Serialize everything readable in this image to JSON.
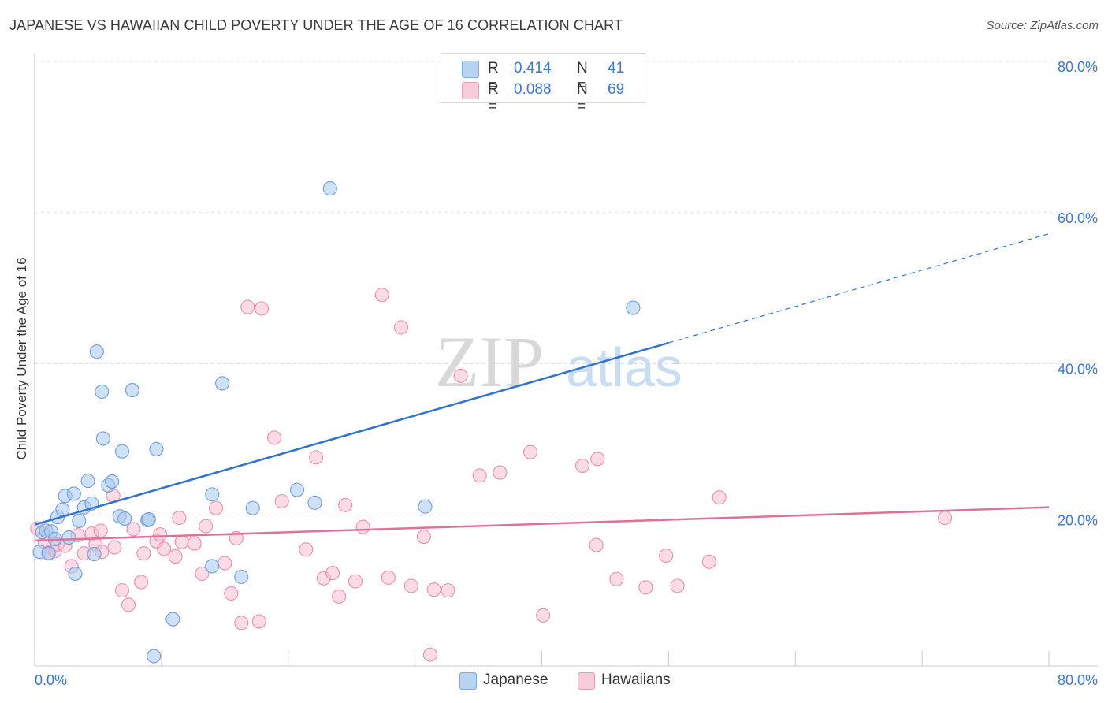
{
  "title": "JAPANESE VS HAWAIIAN CHILD POVERTY UNDER THE AGE OF 16 CORRELATION CHART",
  "source": "Source: ZipAtlas.com",
  "watermark": {
    "zip": "ZIP",
    "atlas": "atlas"
  },
  "legend_top": {
    "rows": [
      {
        "r_label": "R =",
        "r_value": "0.414",
        "n_label": "N =",
        "n_value": "41"
      },
      {
        "r_label": "R =",
        "r_value": "0.088",
        "n_label": "N =",
        "n_value": "69"
      }
    ]
  },
  "legend_bottom": {
    "items": [
      "Japanese",
      "Hawaiians"
    ]
  },
  "colors": {
    "japanese_fill": "#a8c8f0",
    "japanese_stroke": "#6f9ed8",
    "japanese_line": "#2f72d2",
    "hawaiian_fill": "#f7bed0",
    "hawaiian_stroke": "#eb8fae",
    "hawaiian_line": "#e0709a",
    "tick_label": "#3b78d0",
    "grid": "#e3e3e3"
  },
  "chart_data": {
    "type": "scatter",
    "title": "JAPANESE VS HAWAIIAN CHILD POVERTY UNDER THE AGE OF 16 CORRELATION CHART",
    "xlabel": "",
    "ylabel": "Child Poverty Under the Age of 16",
    "xlim": [
      0,
      80
    ],
    "ylim": [
      0,
      80
    ],
    "x_tick_labels": [
      "0.0%",
      "80.0%"
    ],
    "y_ticks": [
      20,
      40,
      60,
      80
    ],
    "y_tick_labels": [
      "20.0%",
      "40.0%",
      "60.0%",
      "80.0%"
    ],
    "grid": true,
    "legend": "top-center",
    "series": [
      {
        "name": "Japanese",
        "points": [
          [
            0.4,
            15.1
          ],
          [
            0.6,
            17.7
          ],
          [
            0.9,
            17.9
          ],
          [
            1.1,
            14.9
          ],
          [
            1.3,
            17.8
          ],
          [
            1.6,
            16.8
          ],
          [
            1.8,
            19.7
          ],
          [
            2.2,
            20.7
          ],
          [
            2.4,
            22.5
          ],
          [
            2.7,
            17.0
          ],
          [
            3.1,
            22.8
          ],
          [
            3.2,
            12.2
          ],
          [
            3.5,
            19.2
          ],
          [
            3.9,
            21.0
          ],
          [
            4.2,
            24.5
          ],
          [
            4.5,
            21.5
          ],
          [
            4.7,
            14.8
          ],
          [
            4.9,
            41.6
          ],
          [
            5.3,
            36.3
          ],
          [
            5.4,
            30.1
          ],
          [
            5.8,
            23.9
          ],
          [
            6.1,
            24.4
          ],
          [
            6.7,
            19.8
          ],
          [
            6.9,
            28.4
          ],
          [
            7.1,
            19.5
          ],
          [
            7.7,
            36.5
          ],
          [
            8.9,
            19.3
          ],
          [
            9.0,
            19.4
          ],
          [
            9.6,
            28.7
          ],
          [
            9.4,
            1.3
          ],
          [
            10.9,
            6.2
          ],
          [
            14.0,
            22.7
          ],
          [
            14.0,
            13.2
          ],
          [
            14.8,
            37.4
          ],
          [
            16.3,
            11.8
          ],
          [
            17.2,
            20.9
          ],
          [
            20.7,
            23.3
          ],
          [
            22.1,
            21.6
          ],
          [
            23.3,
            63.2
          ],
          [
            30.8,
            21.1
          ],
          [
            47.2,
            47.4
          ]
        ]
      },
      {
        "name": "Hawaiians",
        "points": [
          [
            0.2,
            18.2
          ],
          [
            0.8,
            16.4
          ],
          [
            1.1,
            15.0
          ],
          [
            1.6,
            15.2
          ],
          [
            1.8,
            16.1
          ],
          [
            2.4,
            15.9
          ],
          [
            2.9,
            13.2
          ],
          [
            3.4,
            17.3
          ],
          [
            3.9,
            14.9
          ],
          [
            4.5,
            17.5
          ],
          [
            4.8,
            16.1
          ],
          [
            5.2,
            17.9
          ],
          [
            5.3,
            15.1
          ],
          [
            6.2,
            22.5
          ],
          [
            6.3,
            15.7
          ],
          [
            6.9,
            10.0
          ],
          [
            7.4,
            8.1
          ],
          [
            7.8,
            18.1
          ],
          [
            8.4,
            11.1
          ],
          [
            8.6,
            14.9
          ],
          [
            9.6,
            16.5
          ],
          [
            9.9,
            17.4
          ],
          [
            10.2,
            15.5
          ],
          [
            11.1,
            14.5
          ],
          [
            11.4,
            19.6
          ],
          [
            11.6,
            16.4
          ],
          [
            12.6,
            16.2
          ],
          [
            13.2,
            12.2
          ],
          [
            13.5,
            18.5
          ],
          [
            14.3,
            20.9
          ],
          [
            15.0,
            13.6
          ],
          [
            15.5,
            9.6
          ],
          [
            15.9,
            16.9
          ],
          [
            16.3,
            5.7
          ],
          [
            17.9,
            47.3
          ],
          [
            16.8,
            47.5
          ],
          [
            17.7,
            5.9
          ],
          [
            18.9,
            30.2
          ],
          [
            19.5,
            21.8
          ],
          [
            21.4,
            15.4
          ],
          [
            22.2,
            27.6
          ],
          [
            22.8,
            11.6
          ],
          [
            23.5,
            12.3
          ],
          [
            24.0,
            9.2
          ],
          [
            24.5,
            21.3
          ],
          [
            25.3,
            11.2
          ],
          [
            25.9,
            18.4
          ],
          [
            27.4,
            49.1
          ],
          [
            27.9,
            11.7
          ],
          [
            28.9,
            44.8
          ],
          [
            29.7,
            10.6
          ],
          [
            30.7,
            17.1
          ],
          [
            31.2,
            1.5
          ],
          [
            31.5,
            10.1
          ],
          [
            32.6,
            10.0
          ],
          [
            33.6,
            38.4
          ],
          [
            35.1,
            25.2
          ],
          [
            36.7,
            25.6
          ],
          [
            39.1,
            28.3
          ],
          [
            40.1,
            6.7
          ],
          [
            43.2,
            26.5
          ],
          [
            44.3,
            16.0
          ],
          [
            44.4,
            27.4
          ],
          [
            45.9,
            11.5
          ],
          [
            48.2,
            10.4
          ],
          [
            49.8,
            14.6
          ],
          [
            50.7,
            10.6
          ],
          [
            53.2,
            13.8
          ],
          [
            54.0,
            22.3
          ],
          [
            71.8,
            19.6
          ]
        ]
      }
    ],
    "trend_lines": [
      {
        "series": "Japanese",
        "x_start": 0,
        "y_start": 18.7,
        "x_solid_end": 50,
        "x_end": 80,
        "y_end": 57.2,
        "dashed_after_solid": true
      },
      {
        "series": "Hawaiians",
        "x_start": 0,
        "y_start": 16.6,
        "x_end": 80,
        "y_end": 21.0,
        "dashed_after_solid": false
      }
    ]
  }
}
